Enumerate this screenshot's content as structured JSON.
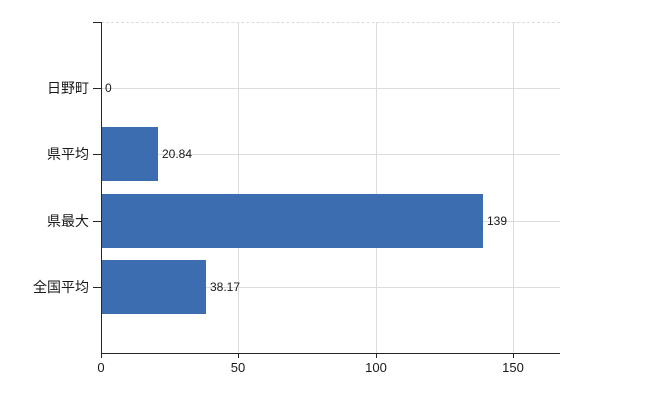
{
  "chart_data": {
    "type": "bar",
    "orientation": "horizontal",
    "title": "",
    "xlabel": "",
    "ylabel": "",
    "categories": [
      "日野町",
      "県平均",
      "県最大",
      "全国平均"
    ],
    "values": [
      0,
      20.84,
      139,
      38.17
    ],
    "value_labels": [
      "0",
      "20.84",
      "139",
      "38.17"
    ],
    "x_ticks": [
      0,
      50,
      100,
      150
    ],
    "x_tick_labels": [
      "0",
      "50",
      "100",
      "150"
    ],
    "xlim": [
      0,
      167
    ],
    "grid": true,
    "legend": "none",
    "bar_color": "#3c6db1",
    "gridline_color": "#d9ded9",
    "axis_color": "#262626",
    "text_color": "#1a1a1a"
  }
}
